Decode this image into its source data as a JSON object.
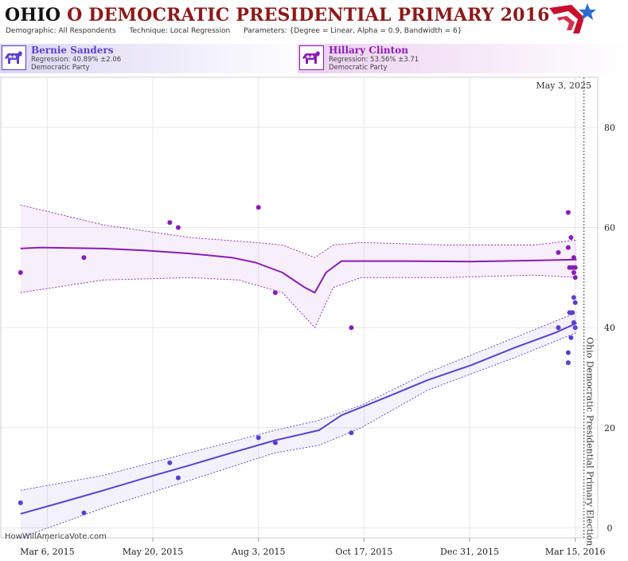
{
  "header": {
    "state": "OHIO",
    "title_rest": " O DEMOCRATIC PRESIDENTIAL PRIMARY 2016",
    "demographic_label": "Demographic:",
    "demographic_value": "All Respondents",
    "technique_label": "Technique:",
    "technique_value": "Local Regression",
    "parameters_label": "Parameters:",
    "parameters_value": "{Degree = Linear, Alpha = 0.9, Bandwidth = 6}"
  },
  "candidates": [
    {
      "name": "Bernie Sanders",
      "regression": "Regression: 40.89% ±2.06",
      "party": "Democratic Party",
      "color": "#5b3fd1"
    },
    {
      "name": "Hillary Clinton",
      "regression": "Regression: 53.56% ±3.71",
      "party": "Democratic Party",
      "color": "#8a1cb8"
    }
  ],
  "watermark": "HowWillAmericaVote.com",
  "colors": {
    "sanders": "#5b3fd1",
    "clinton": "#8a1cb8",
    "grid": "#e6e6e6",
    "title_red": "#8c1a1a"
  },
  "chart_data": {
    "type": "line",
    "x_axis": {
      "type": "date",
      "range": [
        "2015-02-01",
        "2016-03-31"
      ],
      "ticks": [
        "2015-03-06",
        "2015-05-20",
        "2015-08-03",
        "2015-10-17",
        "2015-12-31",
        "2016-03-15"
      ],
      "tick_labels": [
        "Mar 6, 2015",
        "May 20, 2015",
        "Aug 3, 2015",
        "Oct 17, 2015",
        "Dec 31, 2015",
        "Mar 15, 2016"
      ]
    },
    "y_axis": {
      "range": [
        -2,
        90
      ],
      "ticks": [
        0,
        20,
        40,
        60,
        80
      ],
      "position": "right"
    },
    "grid": true,
    "election": {
      "date": "2016-03-15",
      "label": "Ohio Democratic Presidential Primary Election"
    },
    "corner_label": "May 3, 2025",
    "series": [
      {
        "name": "Bernie Sanders",
        "color": "#5b3fd1",
        "line": [
          [
            "2015-02-15",
            2.8
          ],
          [
            "2015-03-15",
            5.0
          ],
          [
            "2015-04-15",
            7.5
          ],
          [
            "2015-05-15",
            10.0
          ],
          [
            "2015-06-15",
            12.5
          ],
          [
            "2015-07-15",
            15.0
          ],
          [
            "2015-08-15",
            17.5
          ],
          [
            "2015-09-15",
            19.5
          ],
          [
            "2015-10-01",
            22.5
          ],
          [
            "2015-11-01",
            26.0
          ],
          [
            "2015-12-01",
            29.5
          ],
          [
            "2016-01-01",
            32.5
          ],
          [
            "2016-02-01",
            36.0
          ],
          [
            "2016-03-01",
            39.0
          ],
          [
            "2016-03-16",
            40.9
          ]
        ],
        "band_upper": [
          [
            "2015-02-15",
            7.5
          ],
          [
            "2015-04-15",
            10.5
          ],
          [
            "2015-06-15",
            15.0
          ],
          [
            "2015-08-15",
            19.5
          ],
          [
            "2015-09-15",
            21.5
          ],
          [
            "2015-10-15",
            24.5
          ],
          [
            "2015-12-01",
            31.0
          ],
          [
            "2016-02-01",
            38.0
          ],
          [
            "2016-03-16",
            43.0
          ]
        ],
        "band_lower": [
          [
            "2015-02-15",
            -2.0
          ],
          [
            "2015-04-15",
            4.0
          ],
          [
            "2015-06-15",
            9.5
          ],
          [
            "2015-08-15",
            15.0
          ],
          [
            "2015-09-15",
            16.5
          ],
          [
            "2015-10-15",
            20.0
          ],
          [
            "2015-12-01",
            27.5
          ],
          [
            "2016-02-01",
            34.0
          ],
          [
            "2016-03-16",
            39.0
          ]
        ],
        "points": [
          [
            "2015-02-15",
            5
          ],
          [
            "2015-04-01",
            3
          ],
          [
            "2015-06-01",
            13
          ],
          [
            "2015-06-07",
            10
          ],
          [
            "2015-08-03",
            18
          ],
          [
            "2015-08-15",
            17
          ],
          [
            "2015-10-08",
            19
          ],
          [
            "2016-03-03",
            40
          ],
          [
            "2016-03-10",
            35
          ],
          [
            "2016-03-10",
            33
          ],
          [
            "2016-03-11",
            43
          ],
          [
            "2016-03-12",
            38
          ],
          [
            "2016-03-13",
            43
          ],
          [
            "2016-03-14",
            41
          ],
          [
            "2016-03-14",
            46
          ],
          [
            "2016-03-15",
            40
          ],
          [
            "2016-03-15",
            45
          ]
        ]
      },
      {
        "name": "Hillary Clinton",
        "color": "#8a1cb8",
        "line": [
          [
            "2015-02-15",
            55.8
          ],
          [
            "2015-03-01",
            56.0
          ],
          [
            "2015-04-15",
            55.8
          ],
          [
            "2015-05-15",
            55.4
          ],
          [
            "2015-06-15",
            54.8
          ],
          [
            "2015-07-15",
            54.0
          ],
          [
            "2015-08-01",
            53.0
          ],
          [
            "2015-08-20",
            51.0
          ],
          [
            "2015-09-05",
            48.0
          ],
          [
            "2015-09-12",
            47.0
          ],
          [
            "2015-09-20",
            51.0
          ],
          [
            "2015-10-01",
            53.3
          ],
          [
            "2015-11-15",
            53.3
          ],
          [
            "2016-01-01",
            53.2
          ],
          [
            "2016-02-15",
            53.4
          ],
          [
            "2016-03-16",
            53.6
          ]
        ],
        "band_upper": [
          [
            "2015-02-15",
            64.5
          ],
          [
            "2015-04-15",
            60.5
          ],
          [
            "2015-06-15",
            58.0
          ],
          [
            "2015-08-01",
            57.0
          ],
          [
            "2015-08-20",
            56.5
          ],
          [
            "2015-09-12",
            54.0
          ],
          [
            "2015-09-25",
            56.5
          ],
          [
            "2015-10-15",
            57.0
          ],
          [
            "2015-12-15",
            56.5
          ],
          [
            "2016-02-15",
            56.5
          ],
          [
            "2016-03-16",
            57.5
          ]
        ],
        "band_lower": [
          [
            "2015-02-15",
            47.0
          ],
          [
            "2015-04-15",
            49.5
          ],
          [
            "2015-06-15",
            50.0
          ],
          [
            "2015-07-20",
            49.5
          ],
          [
            "2015-08-20",
            47.0
          ],
          [
            "2015-09-12",
            40.0
          ],
          [
            "2015-09-25",
            48.0
          ],
          [
            "2015-10-15",
            50.0
          ],
          [
            "2015-12-15",
            50.0
          ],
          [
            "2016-02-15",
            50.5
          ],
          [
            "2016-03-16",
            50.0
          ]
        ],
        "points": [
          [
            "2015-02-15",
            51
          ],
          [
            "2015-04-01",
            54
          ],
          [
            "2015-06-01",
            61
          ],
          [
            "2015-06-07",
            60
          ],
          [
            "2015-08-03",
            64
          ],
          [
            "2015-08-15",
            47
          ],
          [
            "2015-10-08",
            40
          ],
          [
            "2016-03-03",
            55
          ],
          [
            "2016-03-10",
            63
          ],
          [
            "2016-03-10",
            56
          ],
          [
            "2016-03-11",
            52
          ],
          [
            "2016-03-12",
            58
          ],
          [
            "2016-03-13",
            52
          ],
          [
            "2016-03-14",
            54
          ],
          [
            "2016-03-14",
            51
          ],
          [
            "2016-03-15",
            52
          ],
          [
            "2016-03-15",
            50
          ]
        ]
      }
    ]
  }
}
